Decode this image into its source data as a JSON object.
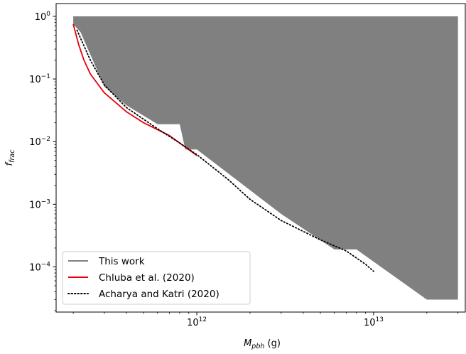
{
  "chart_data": {
    "type": "line",
    "x_scale": "log",
    "y_scale": "log",
    "xlim": [
      160000000000.0,
      33000000000000.0
    ],
    "ylim": [
      1.9e-05,
      1.6
    ],
    "grid": false,
    "legend_position": "lower-left",
    "xlabel": {
      "base": "M",
      "sub": "pbh",
      "unit": " (g)"
    },
    "ylabel": {
      "base": "f",
      "sub": "frac"
    },
    "x_ticks": [
      {
        "value": 1000000000000.0,
        "base": "10",
        "exp": "12"
      },
      {
        "value": 10000000000000.0,
        "base": "10",
        "exp": "13"
      }
    ],
    "y_ticks": [
      {
        "value": 1,
        "base": "10",
        "exp": "0"
      },
      {
        "value": 0.1,
        "base": "10",
        "exp": "−1"
      },
      {
        "value": 0.01,
        "base": "10",
        "exp": "−2"
      },
      {
        "value": 0.001,
        "base": "10",
        "exp": "−3"
      },
      {
        "value": 0.0001,
        "base": "10",
        "exp": "−4"
      }
    ],
    "series": [
      {
        "name": "This work",
        "kind": "excluded-region",
        "color": "#808080",
        "boundary": [
          [
            200000000000.0,
            1
          ],
          [
            30000000000000.0,
            1
          ],
          [
            30000000000000.0,
            3e-05
          ],
          [
            20000000000000.0,
            3e-05
          ],
          [
            8000000000000.0,
            0.00019
          ],
          [
            6000000000000.0,
            0.00019
          ],
          [
            3000000000000.0,
            0.0007
          ],
          [
            1000000000000.0,
            0.0075
          ],
          [
            860000000000.0,
            0.0075
          ],
          [
            800000000000.0,
            0.019
          ],
          [
            600000000000.0,
            0.019
          ],
          [
            400000000000.0,
            0.038
          ],
          [
            300000000000.0,
            0.075
          ],
          [
            220000000000.0,
            0.56
          ],
          [
            200000000000.0,
            0.75
          ]
        ]
      },
      {
        "name": "Chluba et al. (2020)",
        "kind": "line",
        "color": "#e8000b",
        "dash": "solid",
        "points": [
          [
            200000000000.0,
            0.75
          ],
          [
            215000000000.0,
            0.35
          ],
          [
            230000000000.0,
            0.2
          ],
          [
            250000000000.0,
            0.12
          ],
          [
            300000000000.0,
            0.06
          ],
          [
            400000000000.0,
            0.03
          ],
          [
            500000000000.0,
            0.02
          ],
          [
            700000000000.0,
            0.0125
          ],
          [
            1000000000000.0,
            0.006
          ]
        ]
      },
      {
        "name": "Acharya and Katri (2020)",
        "kind": "line",
        "color": "#000000",
        "dash": "dotted",
        "points": [
          [
            210000000000.0,
            0.6
          ],
          [
            250000000000.0,
            0.2
          ],
          [
            300000000000.0,
            0.08
          ],
          [
            400000000000.0,
            0.035
          ],
          [
            600000000000.0,
            0.016
          ],
          [
            800000000000.0,
            0.0095
          ],
          [
            1000000000000.0,
            0.0062
          ],
          [
            1500000000000.0,
            0.0025
          ],
          [
            2000000000000.0,
            0.0012
          ],
          [
            3000000000000.0,
            0.00055
          ],
          [
            5000000000000.0,
            0.00027
          ],
          [
            7000000000000.0,
            0.00018
          ],
          [
            9000000000000.0,
            0.00011
          ],
          [
            10000000000000.0,
            8.5e-05
          ]
        ]
      }
    ]
  }
}
